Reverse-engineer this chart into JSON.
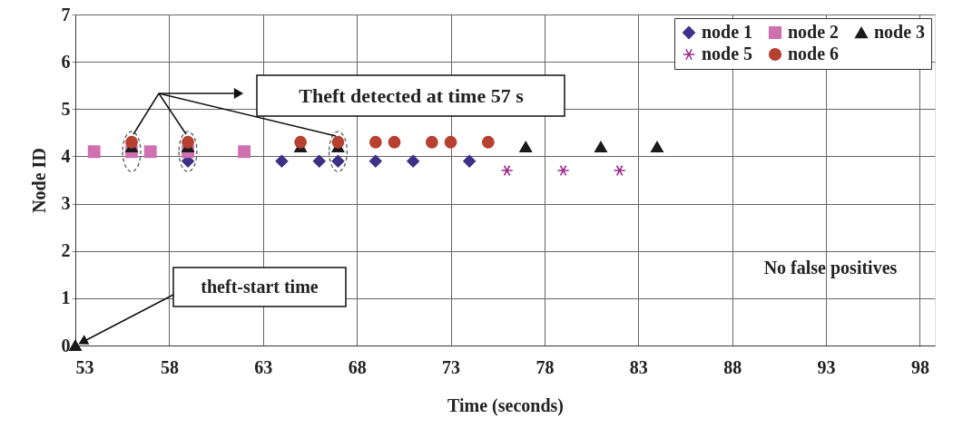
{
  "chart_data": {
    "type": "scatter",
    "xlabel": "Time (seconds)",
    "ylabel": "Node ID",
    "xlim": [
      53,
      98.8
    ],
    "xticks": [
      53,
      58,
      63,
      68,
      73,
      78,
      83,
      88,
      93,
      98
    ],
    "ylim": [
      0,
      7
    ],
    "yticks": [
      {
        "value": 0,
        "label": "0"
      },
      {
        "value": 1,
        "label": "1"
      },
      {
        "value": 2,
        "label": "2"
      },
      {
        "value": 3,
        "label": "3"
      },
      {
        "value": 4,
        "label": "4"
      },
      {
        "value": 5,
        "label": "5"
      },
      {
        "value": 6,
        "label": "6"
      },
      {
        "value": 7,
        "label": "7"
      }
    ],
    "grid": true,
    "legend": "top right",
    "annotations": [
      "Theft detected at time 57 s",
      "theft-start time",
      "No false positives"
    ],
    "series": [
      {
        "name": "node 1",
        "color": "#3f3187",
        "marker": "diamond",
        "x": [
          59,
          64,
          66,
          67,
          69,
          71,
          74
        ],
        "values": [
          3.9,
          3.9,
          3.9,
          3.9,
          3.9,
          3.9,
          3.9
        ]
      },
      {
        "name": "node 2",
        "color": "#d070b0",
        "marker": "square",
        "x": [
          54,
          56,
          57,
          59,
          62
        ],
        "values": [
          4.1,
          4.1,
          4.1,
          4.1,
          4.1
        ]
      },
      {
        "name": "node 3",
        "color": "#1a1a1a",
        "marker": "triangle",
        "x": [
          53,
          56,
          59,
          65,
          67,
          77,
          81,
          84
        ],
        "values": [
          0,
          4.2,
          4.2,
          4.2,
          4.2,
          4.2,
          4.2,
          4.2
        ]
      },
      {
        "name": "node 5",
        "color": "#a0288c",
        "marker": "cross",
        "x": [
          76,
          79,
          82
        ],
        "values": [
          3.7,
          3.7,
          3.7
        ]
      },
      {
        "name": "node 6",
        "color": "#b84030",
        "marker": "circle",
        "x": [
          56,
          59,
          65,
          67,
          69,
          70,
          72,
          73,
          75
        ],
        "values": [
          4.3,
          4.3,
          4.3,
          4.3,
          4.3,
          4.3,
          4.3,
          4.3,
          4.3
        ]
      }
    ]
  }
}
